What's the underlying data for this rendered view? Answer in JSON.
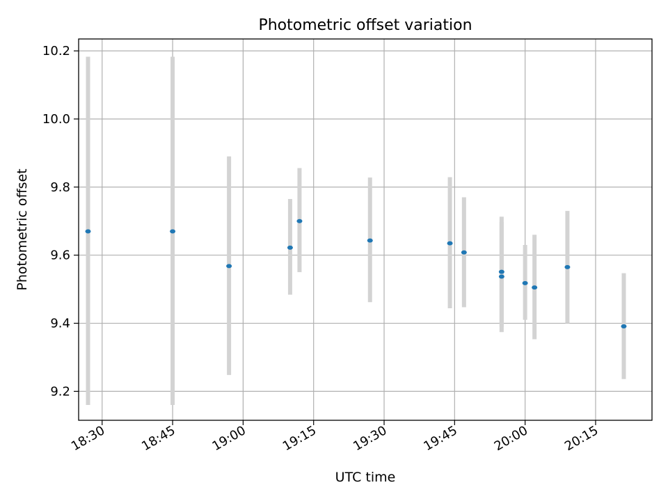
{
  "chart_data": {
    "type": "scatter",
    "title": "Photometric offset variation",
    "xlabel": "UTC time",
    "ylabel": "Photometric offset",
    "x_is_time": true,
    "xlim": [
      "18:25",
      "20:27"
    ],
    "ylim": [
      9.115,
      10.235
    ],
    "xticks": [
      "18:30",
      "18:45",
      "19:00",
      "19:15",
      "19:30",
      "19:45",
      "20:00",
      "20:15"
    ],
    "yticks": [
      9.2,
      9.4,
      9.6,
      9.8,
      10.0,
      10.2
    ],
    "ytick_labels": [
      "9.2",
      "9.4",
      "9.6",
      "9.8",
      "10.0",
      "10.2"
    ],
    "grid": true,
    "marker_color": "#1f77b4",
    "errorbar_color": "#d3d3d3",
    "points": [
      {
        "x": "18:27",
        "y": 9.67,
        "low": 9.16,
        "high": 10.183
      },
      {
        "x": "18:45",
        "y": 9.67,
        "low": 9.16,
        "high": 10.183
      },
      {
        "x": "18:57",
        "y": 9.568,
        "low": 9.248,
        "high": 9.89
      },
      {
        "x": "19:10",
        "y": 9.622,
        "low": 9.484,
        "high": 9.765
      },
      {
        "x": "19:12",
        "y": 9.7,
        "low": 9.55,
        "high": 9.856
      },
      {
        "x": "19:27",
        "y": 9.643,
        "low": 9.462,
        "high": 9.828
      },
      {
        "x": "19:44",
        "y": 9.635,
        "low": 9.444,
        "high": 9.829
      },
      {
        "x": "19:47",
        "y": 9.608,
        "low": 9.447,
        "high": 9.77
      },
      {
        "x": "19:55",
        "y": 9.537,
        "low": 9.374,
        "high": 9.698
      },
      {
        "x": "19:55",
        "y": 9.551,
        "low": 9.39,
        "high": 9.713
      },
      {
        "x": "20:00",
        "y": 9.518,
        "low": 9.41,
        "high": 9.63
      },
      {
        "x": "20:02",
        "y": 9.505,
        "low": 9.353,
        "high": 9.66
      },
      {
        "x": "20:09",
        "y": 9.565,
        "low": 9.4,
        "high": 9.73
      },
      {
        "x": "20:21",
        "y": 9.391,
        "low": 9.236,
        "high": 9.547
      }
    ]
  }
}
